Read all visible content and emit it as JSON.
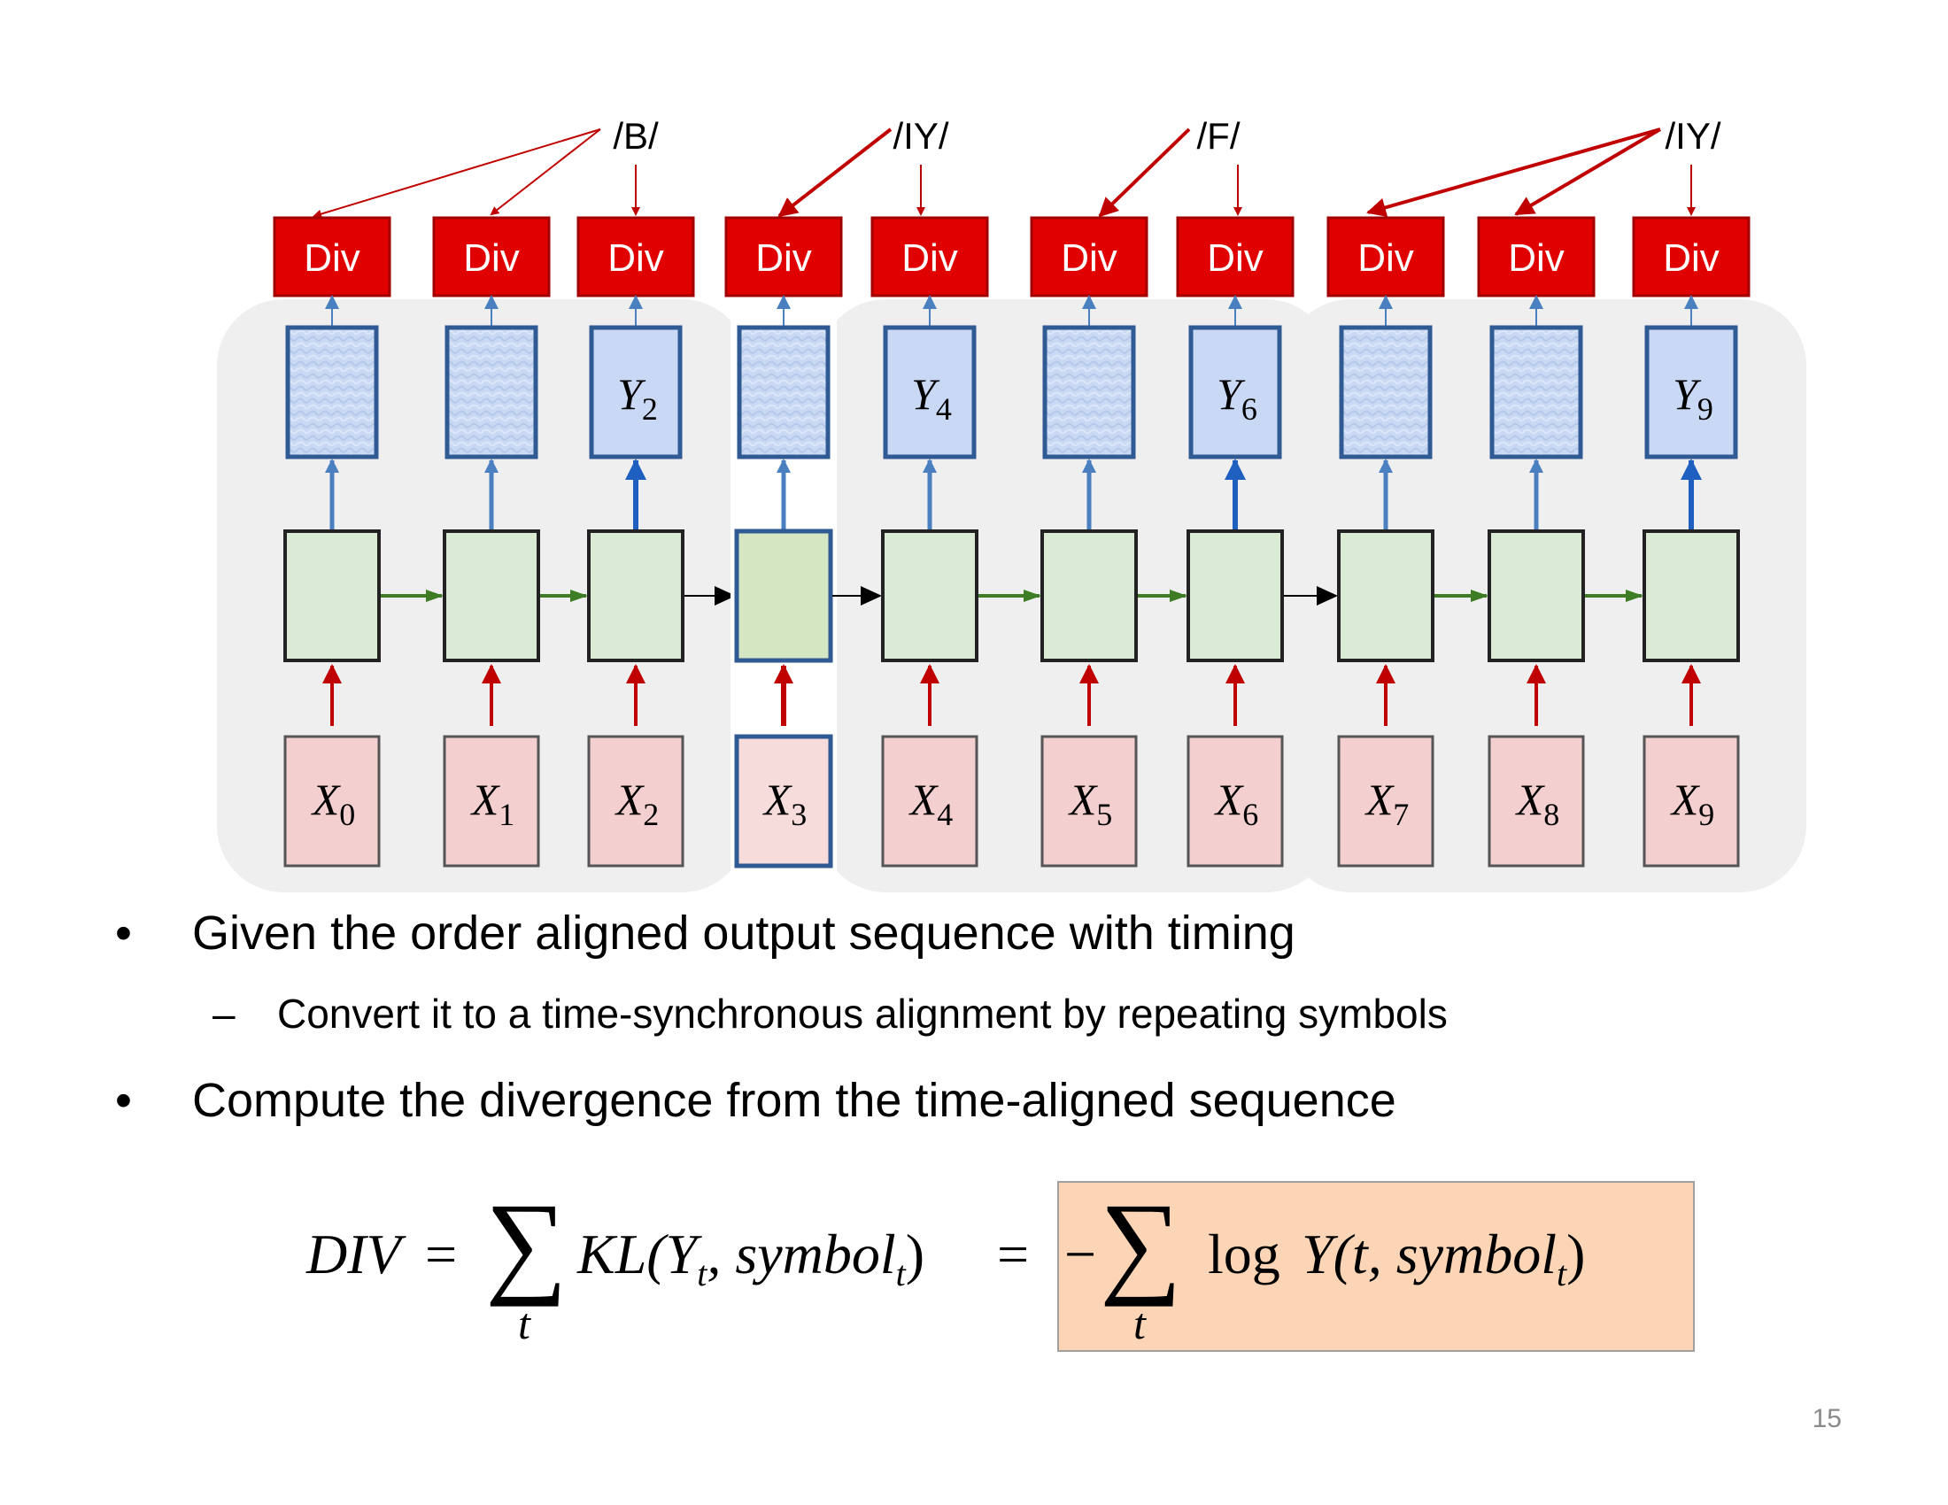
{
  "phonemes": [
    "/B/",
    "/IY/",
    "/F/",
    "/IY/"
  ],
  "div_label": "Div",
  "outputs": [
    {
      "label": "",
      "sub": ""
    },
    {
      "label": "",
      "sub": ""
    },
    {
      "label": "Y",
      "sub": "2"
    },
    {
      "label": "",
      "sub": ""
    },
    {
      "label": "Y",
      "sub": "4"
    },
    {
      "label": "",
      "sub": ""
    },
    {
      "label": "Y",
      "sub": "6"
    },
    {
      "label": "",
      "sub": ""
    },
    {
      "label": "",
      "sub": ""
    },
    {
      "label": "Y",
      "sub": "9"
    }
  ],
  "inputs": [
    {
      "label": "X",
      "sub": "0"
    },
    {
      "label": "X",
      "sub": "1"
    },
    {
      "label": "X",
      "sub": "2"
    },
    {
      "label": "X",
      "sub": "3"
    },
    {
      "label": "X",
      "sub": "4"
    },
    {
      "label": "X",
      "sub": "5"
    },
    {
      "label": "X",
      "sub": "6"
    },
    {
      "label": "X",
      "sub": "7"
    },
    {
      "label": "X",
      "sub": "8"
    },
    {
      "label": "X",
      "sub": "9"
    }
  ],
  "bullets": {
    "bullet_char": "•",
    "dash_char": "–",
    "b1": "Given the order aligned output sequence with timing",
    "b1_sub": "Convert it to a time-synchronous alignment by repeating symbols",
    "b2": "Compute the divergence from the time-aligned sequence"
  },
  "formula": {
    "lhs": "DIV",
    "eq": "=",
    "sum": "∑",
    "sum_index": "t",
    "kl": "KL(Y",
    "kl_sub": "t",
    "kl_mid": ", symbol",
    "kl_sub2": "t",
    "kl_end": ")",
    "minus": "−",
    "log": "log",
    "y_open": "Y(t, symbol",
    "y_sub": "t",
    "y_close": ")"
  },
  "page_number": "15",
  "colors": {
    "div_red": "#e00000",
    "output_blue": "#c8d8f5",
    "hidden_green": "#dbead5",
    "input_pink": "#f4cfcf",
    "highlight_orange": "#fbd5b5"
  }
}
